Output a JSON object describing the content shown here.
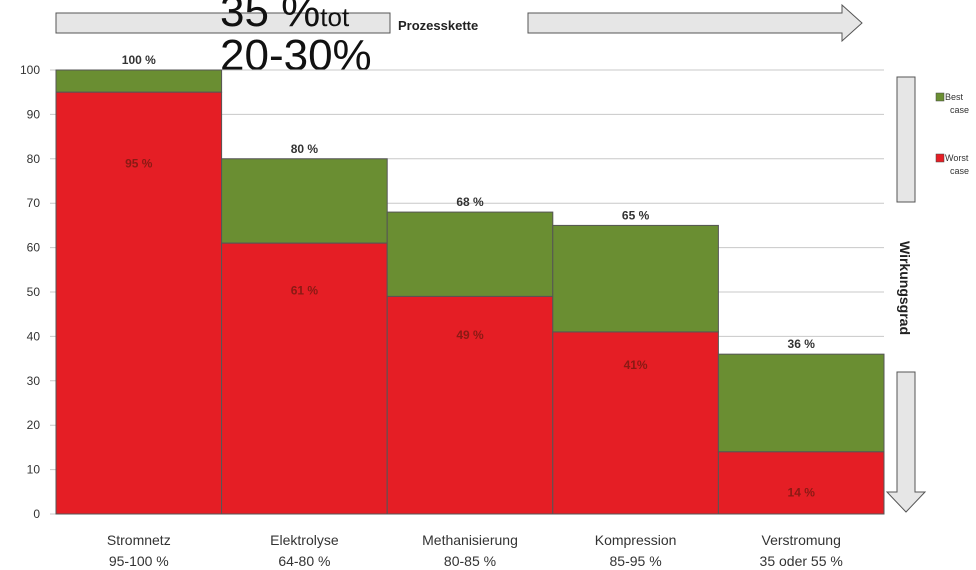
{
  "chart_data": {
    "type": "bar",
    "categories": [
      "Stromnetz",
      "Elektrolyse",
      "Methanisierung",
      "Kompression",
      "Verstromung"
    ],
    "category_ranges": [
      "95-100 %",
      "64-80 %",
      "80-85 %",
      "85-95 %",
      "35 oder 55 %"
    ],
    "series": [
      {
        "name": "Best case",
        "values": [
          100,
          80,
          68,
          65,
          36
        ],
        "labels": [
          "100 %",
          "80 %",
          "68 %",
          "65 %",
          "36 %"
        ]
      },
      {
        "name": "Worst case",
        "values": [
          95,
          61,
          49,
          41,
          14
        ],
        "labels": [
          "95 %",
          "61 %",
          "49 %",
          "41%",
          "14 %"
        ]
      }
    ],
    "ylim": [
      0,
      100
    ],
    "yticks": [
      0,
      10,
      20,
      30,
      40,
      50,
      60,
      70,
      80,
      90,
      100
    ],
    "grid": true,
    "legend_position": "right",
    "colors": {
      "best": "#6a8e32",
      "worst": "#e51e25"
    }
  },
  "annotations": {
    "top_text_fragment": "35 %",
    "top_text_subscript": "tot",
    "total_range": "20-30%",
    "process_chain": "Prozesskette",
    "efficiency_axis": "Wirkungsgrad"
  }
}
